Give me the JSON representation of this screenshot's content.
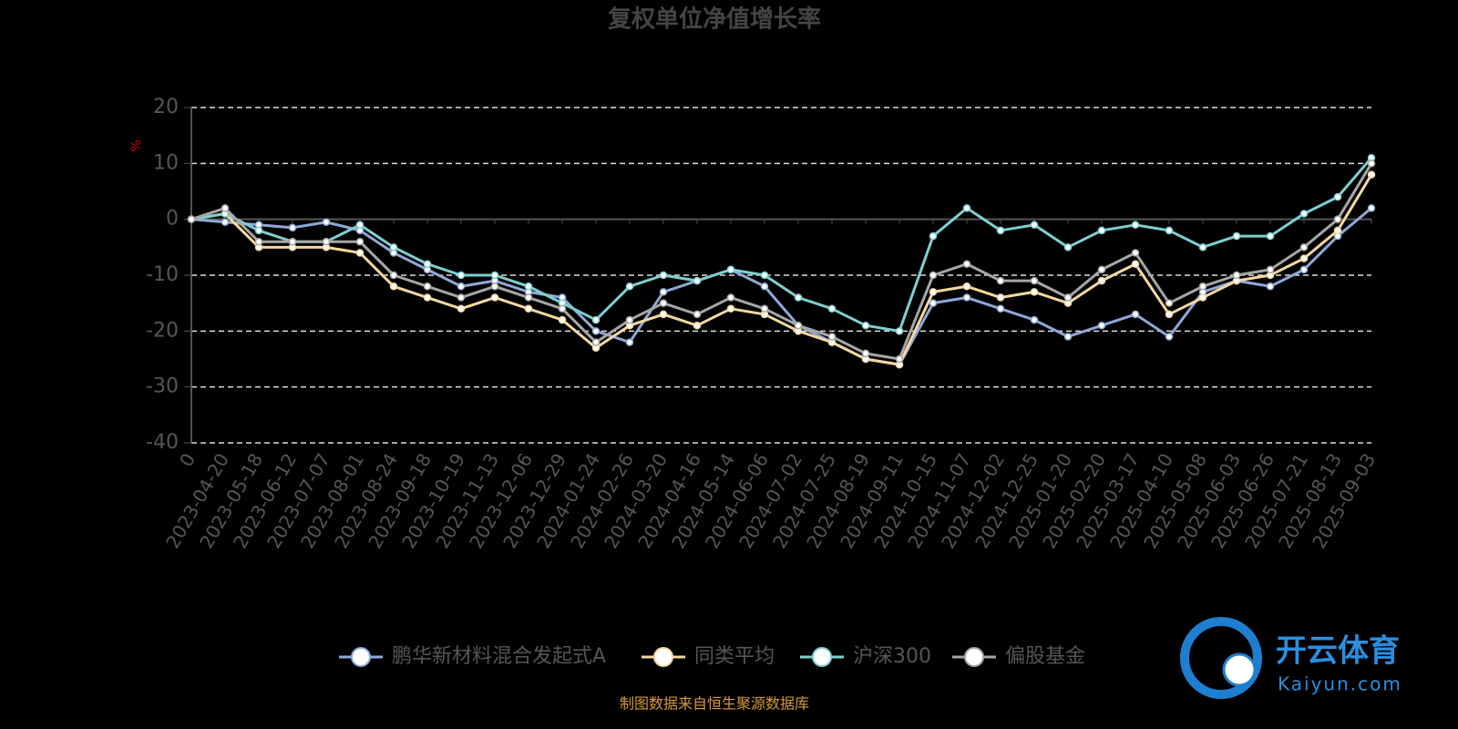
{
  "chart_data": {
    "type": "line",
    "title": "复权单位净值增长率",
    "y_label": "%",
    "categories": [
      "0",
      "2023-04-20",
      "2023-05-18",
      "2023-06-12",
      "2023-07-07",
      "2023-08-01",
      "2023-08-24",
      "2023-09-18",
      "2023-10-19",
      "2023-11-13",
      "2023-12-06",
      "2023-12-29",
      "2024-01-24",
      "2024-02-26",
      "2024-03-20",
      "2024-04-16",
      "2024-05-14",
      "2024-06-06",
      "2024-07-02",
      "2024-07-25",
      "2024-08-19",
      "2024-09-11",
      "2024-10-15",
      "2024-11-07",
      "2024-12-02",
      "2024-12-25",
      "2025-01-20",
      "2025-02-20",
      "2025-03-17",
      "2025-04-10",
      "2025-05-08",
      "2025-06-03",
      "2025-06-26",
      "2025-07-21",
      "2025-08-13",
      "2025-09-03"
    ],
    "series": [
      {
        "name": "鹏华新材料混合发起式A",
        "color": "#8fa8d8",
        "values": [
          0,
          -0.5,
          -1,
          -1.5,
          -0.5,
          -2,
          -6,
          -9,
          -12,
          -11,
          -13,
          -14,
          -20,
          -22,
          -13,
          -11,
          -9,
          -12,
          -19,
          -22,
          -25,
          -26,
          -15,
          -14,
          -16,
          -18,
          -21,
          -19,
          -17,
          -21,
          -13,
          -11,
          -12,
          -9,
          -3,
          2
        ]
      },
      {
        "name": "同类平均",
        "color": "#f5d7a0",
        "values": [
          0,
          1,
          -5,
          -5,
          -5,
          -6,
          -12,
          -14,
          -16,
          -14,
          -16,
          -18,
          -23,
          -19,
          -17,
          -19,
          -16,
          -17,
          -20,
          -22,
          -25,
          -26,
          -13,
          -12,
          -14,
          -13,
          -15,
          -11,
          -8,
          -17,
          -14,
          -11,
          -10,
          -7,
          -2,
          8
        ]
      },
      {
        "name": "沪深300",
        "color": "#7ecfd0",
        "values": [
          0,
          1,
          -2,
          -4,
          -4,
          -1,
          -5,
          -8,
          -10,
          -10,
          -12,
          -15,
          -18,
          -12,
          -10,
          -11,
          -9,
          -10,
          -14,
          -16,
          -19,
          -20,
          -3,
          2,
          -2,
          -1,
          -5,
          -2,
          -1,
          -2,
          -5,
          -3,
          -3,
          1,
          4,
          11
        ]
      },
      {
        "name": "偏股基金",
        "color": "#a6a6a6",
        "values": [
          0,
          2,
          -4,
          -4,
          -4,
          -4,
          -10,
          -12,
          -14,
          -12,
          -14,
          -16,
          -22,
          -18,
          -15,
          -17,
          -14,
          -16,
          -19,
          -21,
          -24,
          -25,
          -10,
          -8,
          -11,
          -11,
          -14,
          -9,
          -6,
          -15,
          -12,
          -10,
          -9,
          -5,
          0,
          10
        ]
      }
    ],
    "ylim": [
      -40,
      20
    ],
    "yticks": [
      -40,
      -30,
      -20,
      -10,
      0,
      10,
      20
    ],
    "grid": true,
    "source": "制图数据来自恒生聚源数据库",
    "watermark": [
      "开云体育",
      "Kaiyun.com"
    ]
  }
}
